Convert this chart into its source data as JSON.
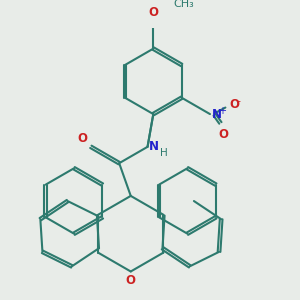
{
  "bg_color": "#e8ece8",
  "bond_color": "#2d7a6e",
  "bond_width": 1.5,
  "N_color": "#2222cc",
  "O_color": "#cc2222",
  "figsize": [
    3.0,
    3.0
  ],
  "dpi": 100,
  "xlim": [
    -2.5,
    3.5
  ],
  "ylim": [
    -3.8,
    3.2
  ]
}
